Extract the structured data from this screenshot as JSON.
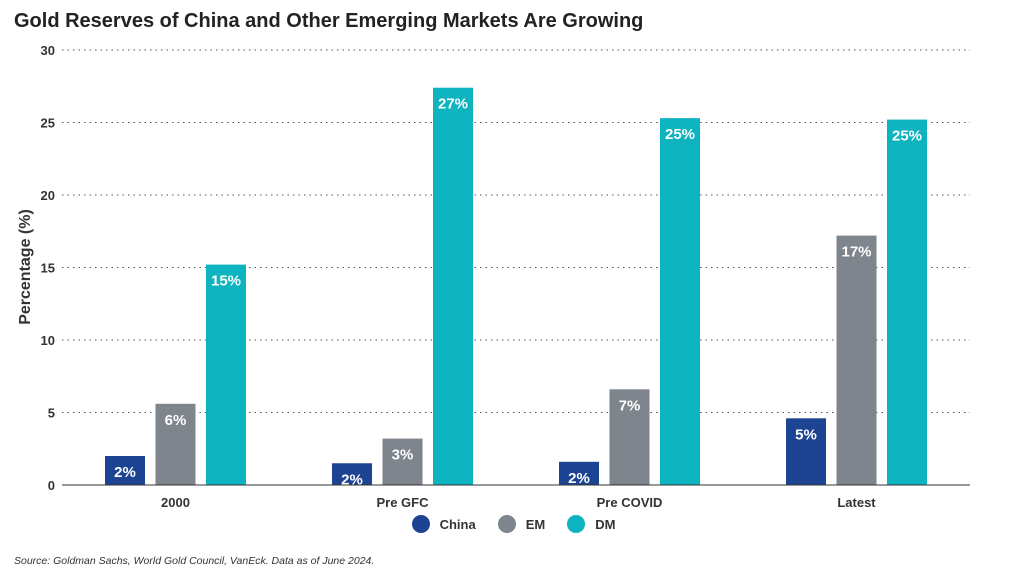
{
  "chart_data": {
    "type": "bar",
    "title": "Gold Reserves of China and Other Emerging Markets Are Growing",
    "xlabel": "",
    "ylabel": "Percentage (%)",
    "categories": [
      "2000",
      "Pre GFC",
      "Pre COVID",
      "Latest"
    ],
    "series": [
      {
        "name": "China",
        "color": "#1c4492",
        "values": [
          2.0,
          1.5,
          1.6,
          4.6
        ],
        "labels": [
          "2%",
          "2%",
          "2%",
          "5%"
        ]
      },
      {
        "name": "EM",
        "color": "#7e858c",
        "values": [
          5.6,
          3.2,
          6.6,
          17.2
        ],
        "labels": [
          "6%",
          "3%",
          "7%",
          "17%"
        ]
      },
      {
        "name": "DM",
        "color": "#0db3bf",
        "values": [
          15.2,
          27.4,
          25.3,
          25.2
        ],
        "labels": [
          "15%",
          "27%",
          "25%",
          "25%"
        ]
      }
    ],
    "ylim": [
      0,
      30
    ],
    "yticks": [
      0,
      5,
      10,
      15,
      20,
      25,
      30
    ],
    "grid": true,
    "legend_position": "bottom-center"
  },
  "source": "Source: Goldman Sachs, World Gold Council, VanEck. Data as of June 2024."
}
